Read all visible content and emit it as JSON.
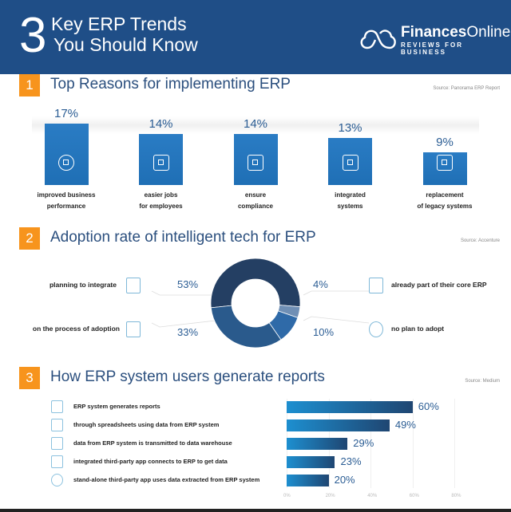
{
  "header": {
    "number": "3",
    "title_line1": "Key ERP Trends",
    "title_line2": "You Should Know",
    "logo_bold": "Finances",
    "logo_light": "Online",
    "logo_tagline": "REVIEWS FOR BUSINESS",
    "bg_color": "#1f4e87"
  },
  "sections": [
    {
      "number": "1",
      "title": "Top Reasons for implementing ERP",
      "source": "Source: Panorama ERP Report"
    },
    {
      "number": "2",
      "title": "Adoption rate of intelligent tech for ERP",
      "source": "Source: Accenture"
    },
    {
      "number": "3",
      "title": "How ERP system users generate reports",
      "source": "Source: Medium"
    }
  ],
  "chart_data": [
    {
      "type": "bar",
      "categories": [
        "improved business performance",
        "easier jobs for employees",
        "ensure compliance",
        "integrated systems",
        "replacement of legacy systems"
      ],
      "captions": [
        [
          "improved business",
          "performance"
        ],
        [
          "easier jobs",
          "for employees"
        ],
        [
          "ensure",
          "compliance"
        ],
        [
          "integrated",
          "systems"
        ],
        [
          "replacement",
          "of legacy systems"
        ]
      ],
      "values": [
        17,
        14,
        14,
        13,
        9
      ],
      "labels": [
        "17%",
        "14%",
        "14%",
        "13%",
        "9%"
      ],
      "icons": [
        "speedometer-icon",
        "team-icon",
        "handshake-icon",
        "cloud-network-icon",
        "server-document-icon"
      ],
      "color": "#1f6fb5"
    },
    {
      "type": "pie",
      "donut": true,
      "slices": [
        {
          "label": "planning to integrate",
          "value": 53,
          "text": "53%",
          "color": "#243f63",
          "icon": "clipboard-checklist-icon"
        },
        {
          "label": "already part of their core ERP",
          "value": 4,
          "text": "4%",
          "color": "#6f8fb5",
          "icon": "monitor-gear-icon"
        },
        {
          "label": "no plan to adopt",
          "value": 10,
          "text": "10%",
          "color": "#2f6aa8",
          "icon": "prohibited-icon"
        },
        {
          "label": "on the process of adoption",
          "value": 33,
          "text": "33%",
          "color": "#2a5a8c",
          "icon": "gear-network-icon"
        }
      ]
    },
    {
      "type": "bar",
      "orientation": "horizontal",
      "categories": [
        "ERP system generates reports",
        "through spreadsheets using data from ERP system",
        "data from ERP system is transmitted to data warehouse",
        "integrated third-party app connects to ERP to get data",
        "stand-alone third-party app uses data extracted from ERP system"
      ],
      "values": [
        60,
        49,
        29,
        23,
        20
      ],
      "labels": [
        "60%",
        "49%",
        "29%",
        "23%",
        "20%"
      ],
      "icons": [
        "monitor-report-icon",
        "spreadsheet-icon",
        "warehouse-icon",
        "app-connect-icon",
        "globe-network-icon"
      ],
      "xlim": [
        0,
        80
      ],
      "xticks": [
        "0%",
        "20%",
        "40%",
        "60%",
        "80%"
      ],
      "grid": true,
      "gradient": [
        "#1d8fd0",
        "#1f4672"
      ]
    }
  ]
}
